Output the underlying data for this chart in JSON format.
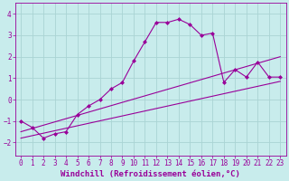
{
  "xlabel": "Windchill (Refroidissement éolien,°C)",
  "bg_color": "#c8ecec",
  "grid_color": "#aad4d4",
  "line_color": "#990099",
  "x_ticks": [
    0,
    1,
    2,
    3,
    4,
    5,
    6,
    7,
    8,
    9,
    10,
    11,
    12,
    13,
    14,
    15,
    16,
    17,
    18,
    19,
    20,
    21,
    22,
    23
  ],
  "y_ticks": [
    -2,
    -1,
    0,
    1,
    2,
    3,
    4
  ],
  "ylim": [
    -2.6,
    4.5
  ],
  "xlim": [
    -0.5,
    23.5
  ],
  "series1_x": [
    0,
    1,
    2,
    3,
    4,
    5,
    6,
    7,
    8,
    9,
    10,
    11,
    12,
    13,
    14,
    15,
    16,
    17,
    18,
    19,
    20,
    21,
    22,
    23
  ],
  "series1_y": [
    -1.0,
    -1.3,
    -1.8,
    -1.6,
    -1.5,
    -0.7,
    -0.3,
    0.0,
    0.5,
    0.8,
    1.8,
    2.7,
    3.6,
    3.6,
    3.75,
    3.5,
    3.0,
    3.1,
    0.8,
    1.4,
    1.05,
    1.75,
    1.05,
    1.05
  ],
  "series2_x": [
    0,
    23
  ],
  "series2_y": [
    -1.5,
    2.0
  ],
  "series3_x": [
    0,
    23
  ],
  "series3_y": [
    -1.8,
    0.85
  ],
  "tick_fontsize": 5.5,
  "label_fontsize": 6.5
}
